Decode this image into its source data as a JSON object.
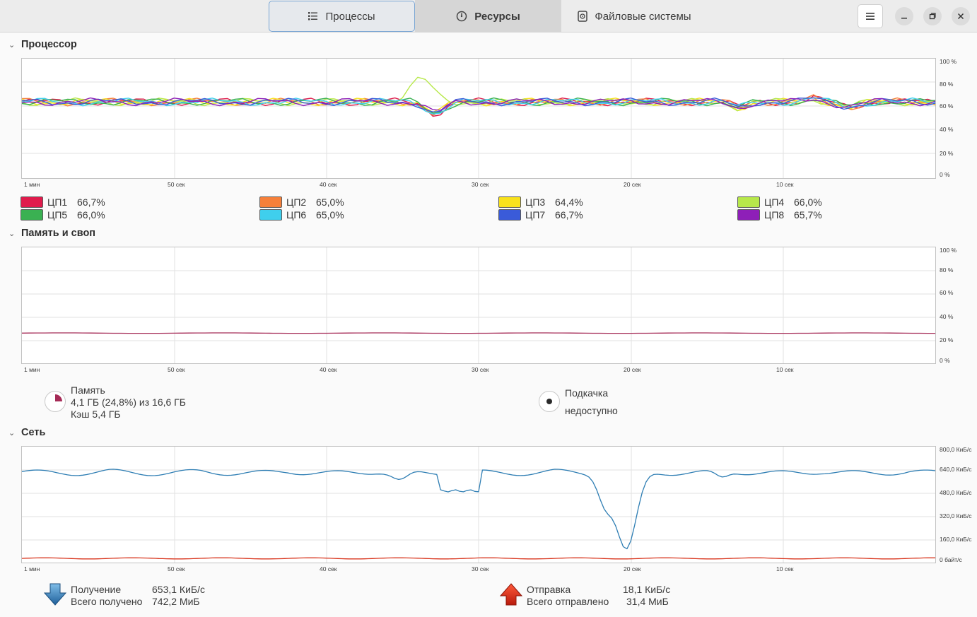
{
  "tabs": [
    {
      "label": "Процессы",
      "icon": "list-icon"
    },
    {
      "label": "Ресурсы",
      "icon": "gauge-icon"
    },
    {
      "label": "Файловые системы",
      "icon": "disk-icon"
    }
  ],
  "cpu": {
    "title": "Процессор",
    "y_ticks": [
      "100 %",
      "80 %",
      "60 %",
      "40 %",
      "20 %",
      "0 %"
    ],
    "x_ticks": [
      "1 мин",
      "50 сек",
      "40 сек",
      "30 сек",
      "20 сек",
      "10 сек"
    ],
    "cores": [
      {
        "name": "ЦП1",
        "value": "66,7%",
        "color": "#e01b4c"
      },
      {
        "name": "ЦП2",
        "value": "65,0%",
        "color": "#f6803a"
      },
      {
        "name": "ЦП3",
        "value": "64,4%",
        "color": "#f8e11b"
      },
      {
        "name": "ЦП4",
        "value": "66,0%",
        "color": "#b7e84a"
      },
      {
        "name": "ЦП5",
        "value": "66,0%",
        "color": "#3ab152"
      },
      {
        "name": "ЦП6",
        "value": "65,0%",
        "color": "#3fcfed"
      },
      {
        "name": "ЦП7",
        "value": "66,7%",
        "color": "#3a5bd9"
      },
      {
        "name": "ЦП8",
        "value": "65,7%",
        "color": "#8e1fb8"
      }
    ]
  },
  "memory": {
    "title": "Память и своп",
    "y_ticks": [
      "100 %",
      "80 %",
      "60 %",
      "40 %",
      "20 %",
      "0 %"
    ],
    "x_ticks": [
      "1 мин",
      "50 сек",
      "40 сек",
      "30 сек",
      "20 сек",
      "10 сек"
    ],
    "mem_label": "Память",
    "mem_usage": "4,1 ГБ (24,8%) из 16,6 ГБ",
    "mem_cache": "Кэш 5,4 ГБ",
    "mem_fraction": 0.248,
    "mem_color": "#a52a56",
    "swap_label": "Подкачка",
    "swap_status": "недоступно"
  },
  "network": {
    "title": "Сеть",
    "y_ticks": [
      "800,0 КиБ/с",
      "640,0 КиБ/с",
      "480,0 КиБ/с",
      "320,0 КиБ/с",
      "160,0 КиБ/с",
      "0 байт/с"
    ],
    "x_ticks": [
      "1 мин",
      "50 сек",
      "40 сек",
      "30 сек",
      "20 сек",
      "10 сек"
    ],
    "recv_label": "Получение",
    "recv_rate": "653,1 КиБ/с",
    "recv_total_label": "Всего получено",
    "recv_total": "742,2 МиБ",
    "recv_color": "#2d7db3",
    "send_label": "Отправка",
    "send_rate": "18,1 КиБ/с",
    "send_total_label": "Всего отправлено",
    "send_total": "31,4 МиБ",
    "send_color": "#d8341c"
  }
}
